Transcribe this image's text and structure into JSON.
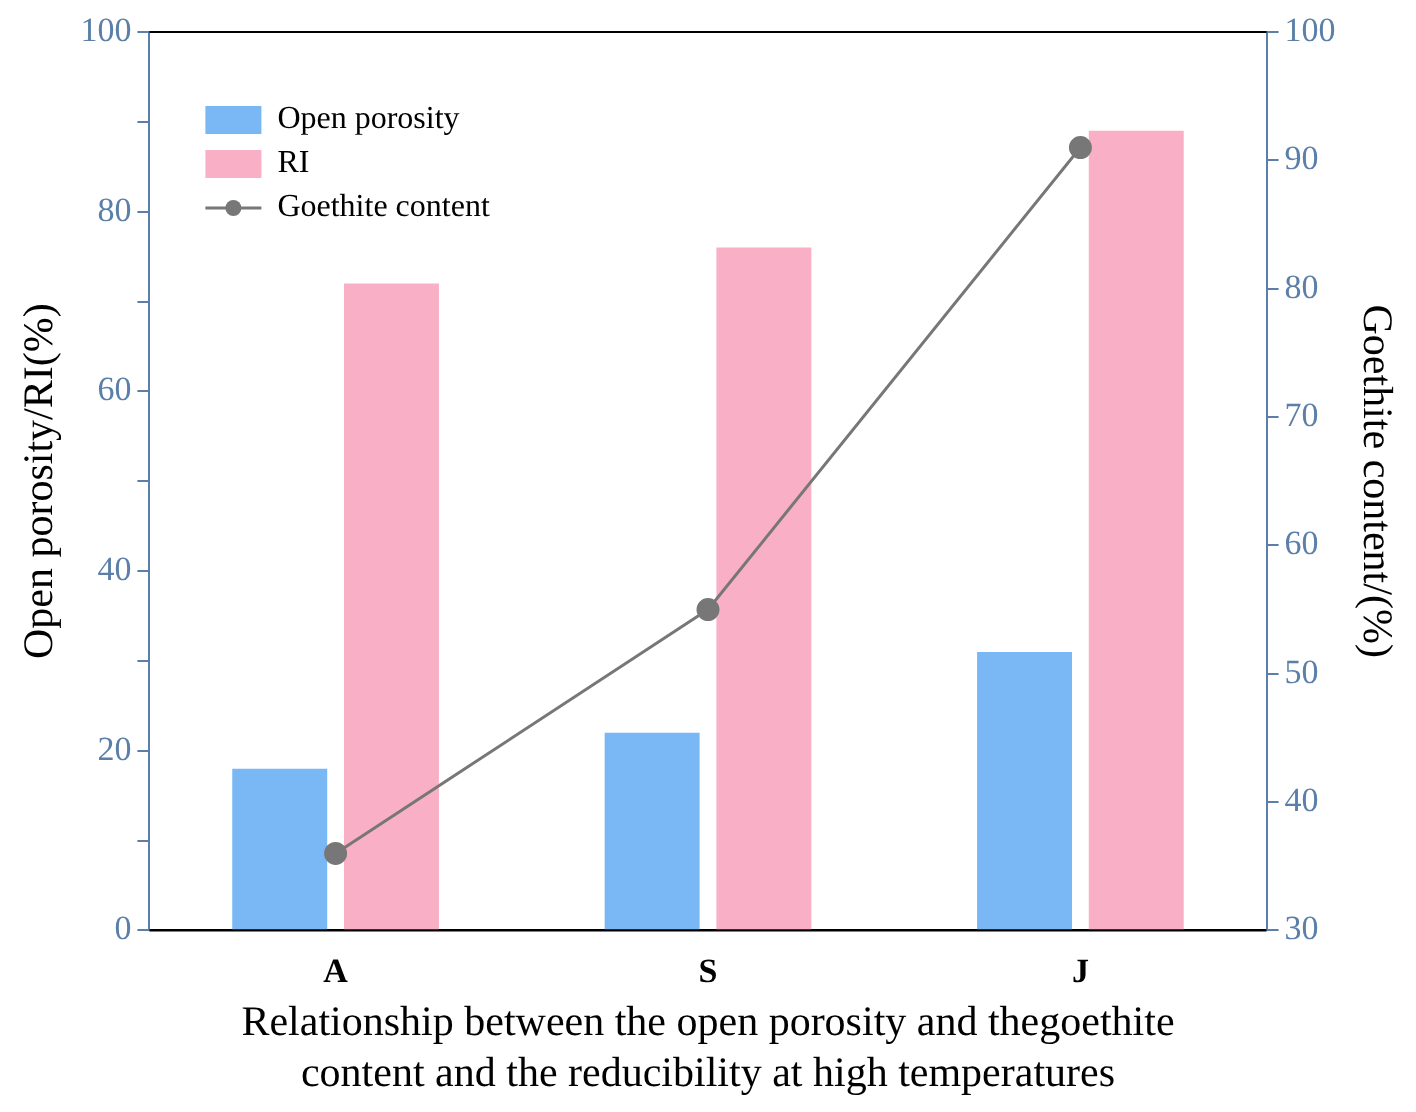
{
  "chart_data": {
    "type": "bar",
    "xlabel": "Relationship between the open porosity and thegoethite content and the reducibility at high temperatures",
    "ylabel": "Open porosity/RI(%)",
    "y2label": "Goethite content/(%)",
    "categories": [
      "A",
      "S",
      "J"
    ],
    "series": [
      {
        "name": "Open porosity",
        "color": "#7ab8f5",
        "values": [
          18,
          22,
          31
        ]
      },
      {
        "name": "RI",
        "color": "#f9b0c6",
        "values": [
          72,
          76,
          89
        ]
      },
      {
        "name": "Goethite content",
        "type": "line",
        "axis": "y2",
        "color": "#777777",
        "values": [
          36,
          55,
          91
        ]
      }
    ],
    "ylim": [
      0,
      100
    ],
    "yticks": [
      0,
      {
        "value": 10,
        "label": null
      },
      20,
      {
        "value": 30,
        "label": null
      },
      40,
      {
        "value": 50,
        "label": null
      },
      60,
      {
        "value": 70,
        "label": null
      },
      80,
      {
        "value": 90,
        "label": null
      },
      100
    ],
    "y2lim": [
      30,
      100
    ],
    "y2ticks": [
      30,
      40,
      50,
      60,
      70,
      80,
      90,
      100
    ],
    "grid": false,
    "legend": "top left",
    "marker": "circle",
    "line_style": "solid"
  }
}
